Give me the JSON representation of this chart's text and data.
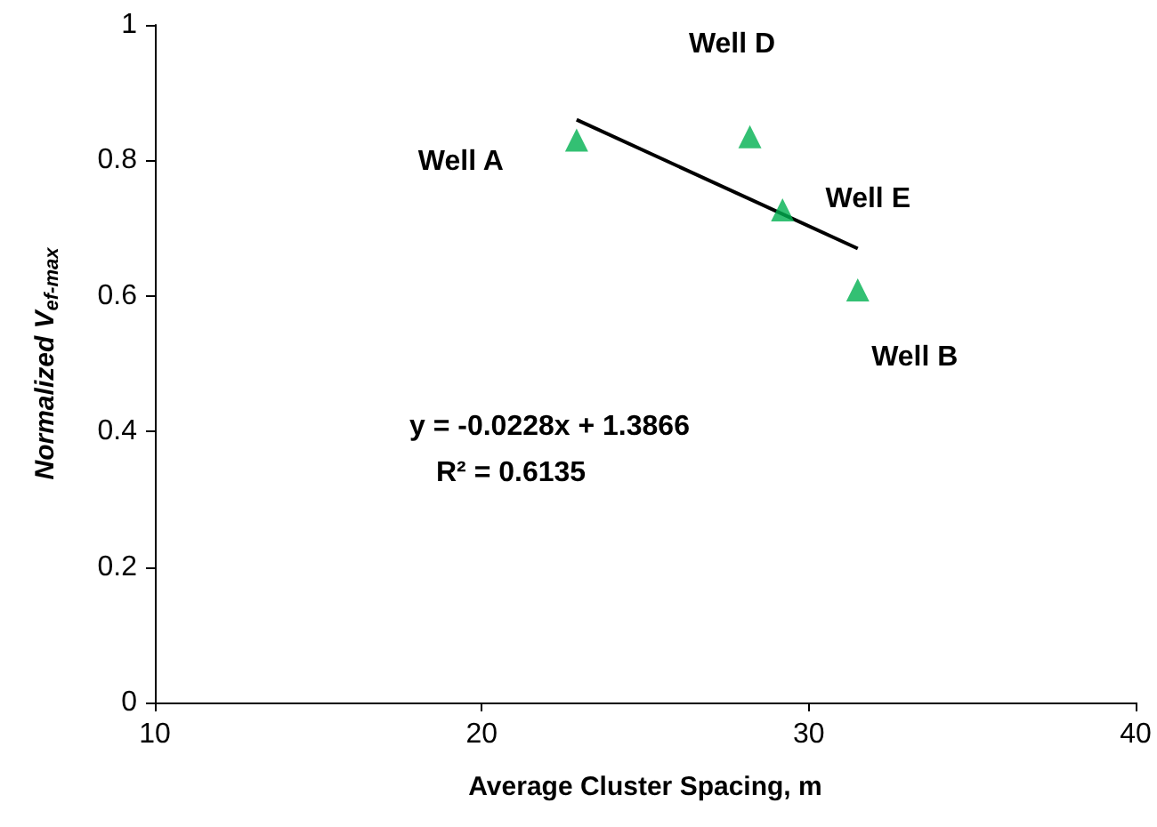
{
  "chart_data": {
    "type": "scatter",
    "xlabel": "Average Cluster Spacing, m",
    "ylabel": "Normalized V$_{ef-max}$",
    "series": [
      {
        "color": "#00b050",
        "x": [
          22.9,
          28.2,
          29.2,
          31.5
        ],
        "values": [
          0.83,
          0.835,
          0.727,
          0.609
        ],
        "marker": "triangle"
      },
      {
        "type": "line",
        "color": "#000000",
        "x": [
          22.9,
          31.5
        ],
        "values": [
          0.86,
          0.67
        ],
        "marker": "none",
        "line_style": "solid"
      }
    ],
    "annotations": [
      {
        "text": "Well A",
        "x": 22.9,
        "y": 0.83
      },
      {
        "text": "Well D",
        "x": 28.2,
        "y": 0.835
      },
      {
        "text": "Well E",
        "x": 29.2,
        "y": 0.727
      },
      {
        "text": "Well B",
        "x": 31.5,
        "y": 0.609
      },
      "y = -0.0228x + 1.3866",
      "R² = 0.6135"
    ],
    "xlim": [
      10,
      40
    ],
    "xticks": [
      10,
      20,
      30,
      40
    ],
    "ylim": [
      0,
      1
    ],
    "yticks": [
      0,
      0.2,
      0.4,
      0.6,
      0.8,
      1
    ],
    "grid": false
  }
}
